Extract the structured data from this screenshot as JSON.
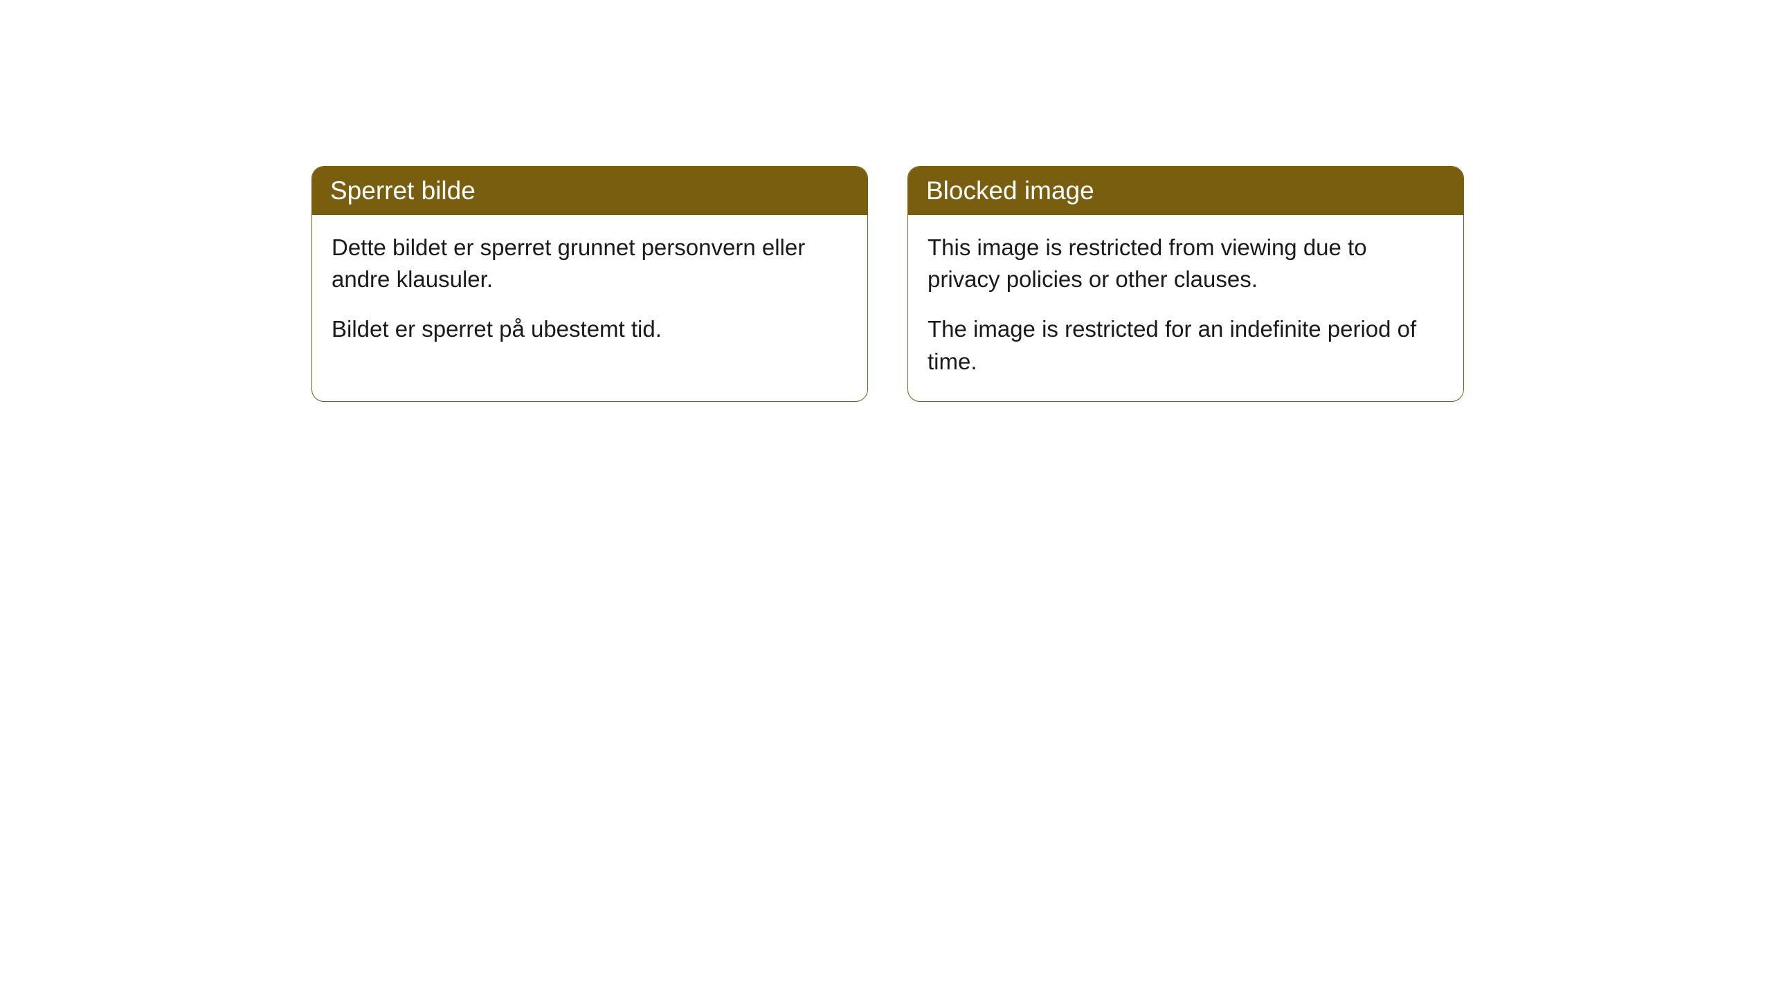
{
  "cards": [
    {
      "title": "Sperret bilde",
      "paragraph1": "Dette bildet er sperret grunnet personvern eller andre klausuler.",
      "paragraph2": "Bildet er sperret på ubestemt tid."
    },
    {
      "title": "Blocked image",
      "paragraph1": "This image is restricted from viewing due to privacy policies or other clauses.",
      "paragraph2": "The image is restricted for an indefinite period of time."
    }
  ],
  "style": {
    "header_background": "#7a5e10",
    "header_text_color": "#ffffff",
    "border_color": "#7a5e10",
    "body_background": "#ffffff",
    "body_text_color": "#1a1a1a",
    "border_radius": 18,
    "title_fontsize": 37,
    "body_fontsize": 33
  }
}
